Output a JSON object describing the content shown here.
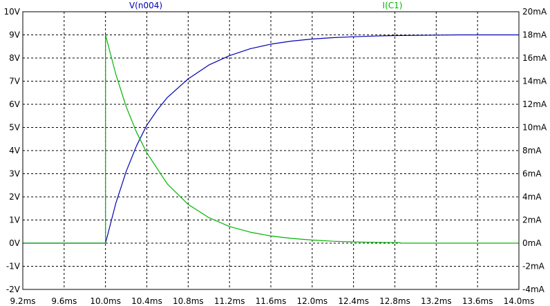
{
  "chart_data": {
    "type": "line",
    "title": "",
    "xlabel": "",
    "ylabel": "",
    "y2label": "",
    "grid": true,
    "xlim": [
      9.2,
      14.0
    ],
    "ylim": [
      -2,
      10
    ],
    "y2lim": [
      -4,
      20
    ],
    "x_ticks": [
      9.2,
      9.6,
      10.0,
      10.4,
      10.8,
      11.2,
      11.6,
      12.0,
      12.4,
      12.8,
      13.2,
      13.6,
      14.0
    ],
    "x_tick_labels": [
      "9.2ms",
      "9.6ms",
      "10.0ms",
      "10.4ms",
      "10.8ms",
      "11.2ms",
      "11.6ms",
      "12.0ms",
      "12.4ms",
      "12.8ms",
      "13.2ms",
      "13.6ms",
      "14.0ms"
    ],
    "y_ticks": [
      10,
      9,
      8,
      7,
      6,
      5,
      4,
      3,
      2,
      1,
      0,
      -1,
      -2
    ],
    "y_tick_labels": [
      "10V",
      "9V",
      "8V",
      "7V",
      "6V",
      "5V",
      "4V",
      "3V",
      "2V",
      "1V",
      "0V",
      "-1V",
      "-2V"
    ],
    "y2_ticks": [
      20,
      18,
      16,
      14,
      12,
      10,
      8,
      6,
      4,
      2,
      0,
      -2,
      -4
    ],
    "y2_tick_labels": [
      "20mA",
      "18mA",
      "16mA",
      "14mA",
      "12mA",
      "10mA",
      "8mA",
      "6mA",
      "4mA",
      "2mA",
      "0mA",
      "-2mA",
      "-4mA"
    ],
    "series": [
      {
        "name": "V(n004)",
        "axis": "left",
        "color": "#0000b4",
        "x": [
          9.2,
          10.0,
          10.0,
          10.1,
          10.2,
          10.3,
          10.4,
          10.5,
          10.6,
          10.8,
          11.0,
          11.2,
          11.4,
          11.6,
          11.8,
          12.0,
          12.2,
          12.4,
          12.6,
          12.8,
          13.0,
          13.4,
          14.0
        ],
        "y": [
          0,
          0,
          0,
          1.72,
          3.1,
          4.2,
          5.1,
          5.75,
          6.3,
          7.1,
          7.7,
          8.1,
          8.4,
          8.6,
          8.73,
          8.82,
          8.88,
          8.92,
          8.95,
          8.97,
          8.98,
          9.0,
          9.0
        ]
      },
      {
        "name": "I(C1)",
        "axis": "right",
        "color": "#00b400",
        "x": [
          9.2,
          10.0,
          10.0,
          10.1,
          10.2,
          10.3,
          10.4,
          10.6,
          10.8,
          11.0,
          11.2,
          11.4,
          11.6,
          11.8,
          12.0,
          12.2,
          12.4,
          12.6,
          12.8,
          12.85,
          12.85,
          14.0
        ],
        "y": [
          0,
          0,
          18,
          14.6,
          11.8,
          9.6,
          7.8,
          5.1,
          3.35,
          2.2,
          1.44,
          0.95,
          0.62,
          0.41,
          0.27,
          0.17,
          0.11,
          0.07,
          0.05,
          0.05,
          0,
          0
        ]
      }
    ]
  }
}
